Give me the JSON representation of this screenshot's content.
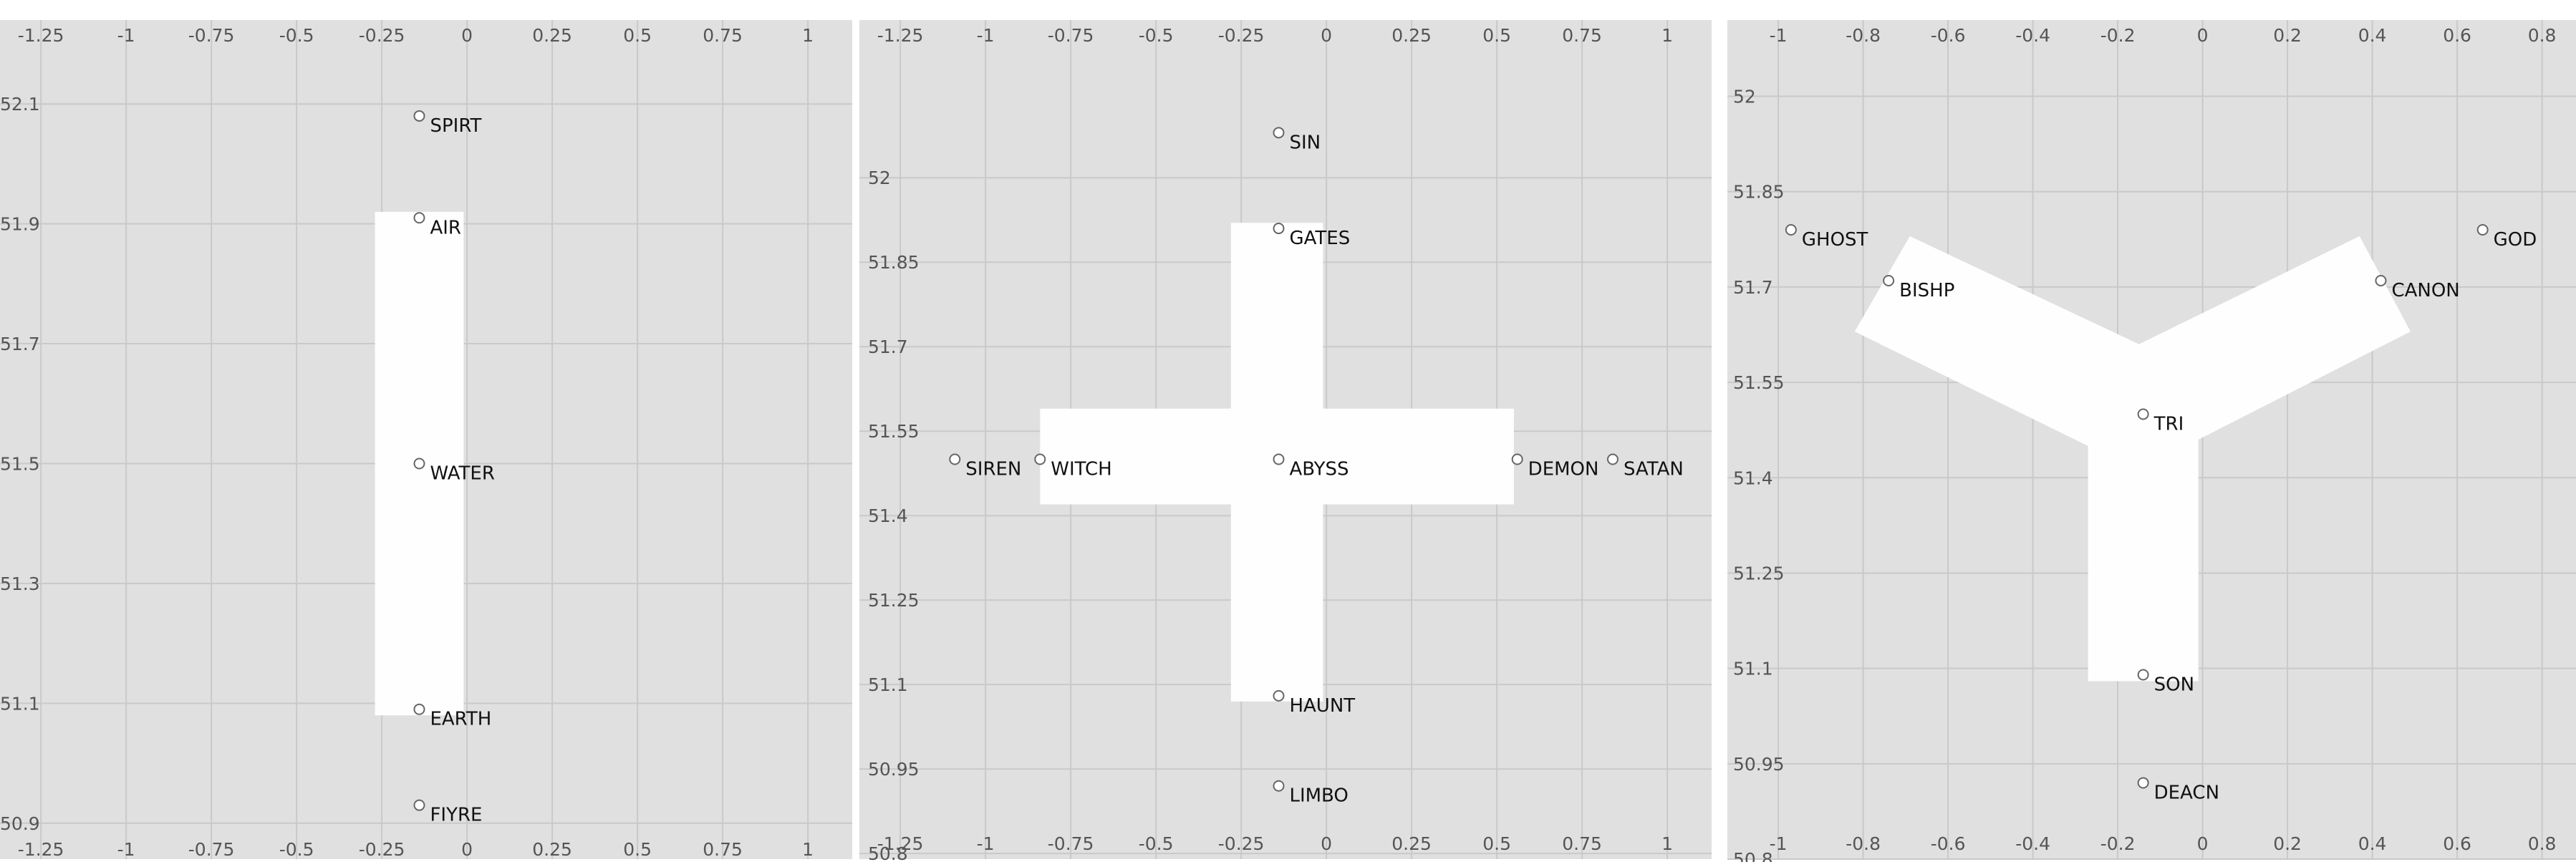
{
  "chart_data": [
    {
      "type": "scatter",
      "title": "",
      "xlabel": "",
      "ylabel": "",
      "grid": true,
      "xlim": [
        -1.37,
        1.13
      ],
      "ylim": [
        50.84,
        52.24
      ],
      "xticks": [
        -1.25,
        -1,
        -0.75,
        -0.5,
        -0.25,
        0,
        0.25,
        0.5,
        0.75,
        1
      ],
      "xtick_labels": [
        "-1.25",
        "-1",
        "-0.75",
        "-0.5",
        "-0.25",
        "0",
        "0.25",
        "0.5",
        "0.75",
        "1"
      ],
      "yticks": [
        50.9,
        51.1,
        51.3,
        51.5,
        51.7,
        51.9,
        52.1
      ],
      "ytick_labels": [
        "50.9",
        "51.1",
        "51.3",
        "51.5",
        "51.7",
        "51.9",
        "52.1"
      ],
      "points": [
        {
          "label": "SPIRT",
          "x": -0.14,
          "y": 52.08
        },
        {
          "label": "AIR",
          "x": -0.14,
          "y": 51.91
        },
        {
          "label": "WATER",
          "x": -0.14,
          "y": 51.5
        },
        {
          "label": "EARTH",
          "x": -0.14,
          "y": 51.09
        },
        {
          "label": "FIYRE",
          "x": -0.14,
          "y": 50.93
        }
      ],
      "shape": [
        [
          -0.27,
          51.92
        ],
        [
          -0.01,
          51.92
        ],
        [
          -0.01,
          51.08
        ],
        [
          -0.27,
          51.08
        ]
      ]
    },
    {
      "type": "scatter",
      "title": "",
      "xlabel": "",
      "ylabel": "",
      "grid": true,
      "xlim": [
        -1.37,
        1.13
      ],
      "ylim": [
        50.79,
        52.28
      ],
      "xticks": [
        -1.25,
        -1,
        -0.75,
        -0.5,
        -0.25,
        0,
        0.25,
        0.5,
        0.75,
        1
      ],
      "xtick_labels": [
        "-1.25",
        "-1",
        "-0.75",
        "-0.5",
        "-0.25",
        "0",
        "0.25",
        "0.5",
        "0.75",
        "1"
      ],
      "yticks": [
        50.8,
        50.95,
        51.1,
        51.25,
        51.4,
        51.55,
        51.7,
        51.85,
        52
      ],
      "ytick_labels": [
        "50.8",
        "50.95",
        "51.1",
        "51.25",
        "51.4",
        "51.55",
        "51.7",
        "51.85",
        "52"
      ],
      "points": [
        {
          "label": "SIN",
          "x": -0.14,
          "y": 52.08
        },
        {
          "label": "GATES",
          "x": -0.14,
          "y": 51.91
        },
        {
          "label": "SIREN",
          "x": -1.09,
          "y": 51.5
        },
        {
          "label": "WITCH",
          "x": -0.84,
          "y": 51.5
        },
        {
          "label": "ABYSS",
          "x": -0.14,
          "y": 51.5
        },
        {
          "label": "DEMON",
          "x": 0.56,
          "y": 51.5
        },
        {
          "label": "SATAN",
          "x": 0.84,
          "y": 51.5
        },
        {
          "label": "HAUNT",
          "x": -0.14,
          "y": 51.08
        },
        {
          "label": "LIMBO",
          "x": -0.14,
          "y": 50.92
        }
      ],
      "shape": [
        [
          -0.28,
          51.92
        ],
        [
          -0.01,
          51.92
        ],
        [
          -0.01,
          51.59
        ],
        [
          0.55,
          51.59
        ],
        [
          0.55,
          51.42
        ],
        [
          -0.01,
          51.42
        ],
        [
          -0.01,
          51.07
        ],
        [
          -0.28,
          51.07
        ],
        [
          -0.28,
          51.42
        ],
        [
          -0.84,
          51.42
        ],
        [
          -0.84,
          51.59
        ],
        [
          -0.28,
          51.59
        ]
      ]
    },
    {
      "type": "scatter",
      "title": "",
      "xlabel": "",
      "ylabel": "",
      "grid": true,
      "xlim": [
        -1.12,
        0.88
      ],
      "ylim": [
        50.8,
        52.12
      ],
      "xticks": [
        -1,
        -0.8,
        -0.6,
        -0.4,
        -0.2,
        0,
        0.2,
        0.4,
        0.6,
        0.8
      ],
      "xtick_labels": [
        "-1",
        "-0.8",
        "-0.6",
        "-0.4",
        "-0.2",
        "0",
        "0.2",
        "0.4",
        "0.6",
        "0.8"
      ],
      "yticks": [
        50.8,
        50.95,
        51.1,
        51.25,
        51.4,
        51.55,
        51.7,
        51.85,
        52
      ],
      "ytick_labels": [
        "50.8",
        "50.95",
        "51.1",
        "51.25",
        "51.4",
        "51.55",
        "51.7",
        "51.85",
        "52"
      ],
      "points": [
        {
          "label": "GHOST",
          "x": -0.97,
          "y": 51.79
        },
        {
          "label": "GOD",
          "x": 0.66,
          "y": 51.79
        },
        {
          "label": "BISHP",
          "x": -0.74,
          "y": 51.71
        },
        {
          "label": "CANON",
          "x": 0.42,
          "y": 51.71
        },
        {
          "label": "TRI",
          "x": -0.14,
          "y": 51.5
        },
        {
          "label": "SON",
          "x": -0.14,
          "y": 51.09
        },
        {
          "label": "DEACN",
          "x": -0.14,
          "y": 50.92
        }
      ],
      "shape": [
        [
          -0.82,
          51.63
        ],
        [
          -0.69,
          51.78
        ],
        [
          -0.15,
          51.61
        ],
        [
          0.37,
          51.78
        ],
        [
          0.49,
          51.63
        ],
        [
          -0.01,
          51.46
        ],
        [
          -0.01,
          51.08
        ],
        [
          -0.27,
          51.08
        ],
        [
          -0.27,
          51.45
        ]
      ]
    }
  ]
}
